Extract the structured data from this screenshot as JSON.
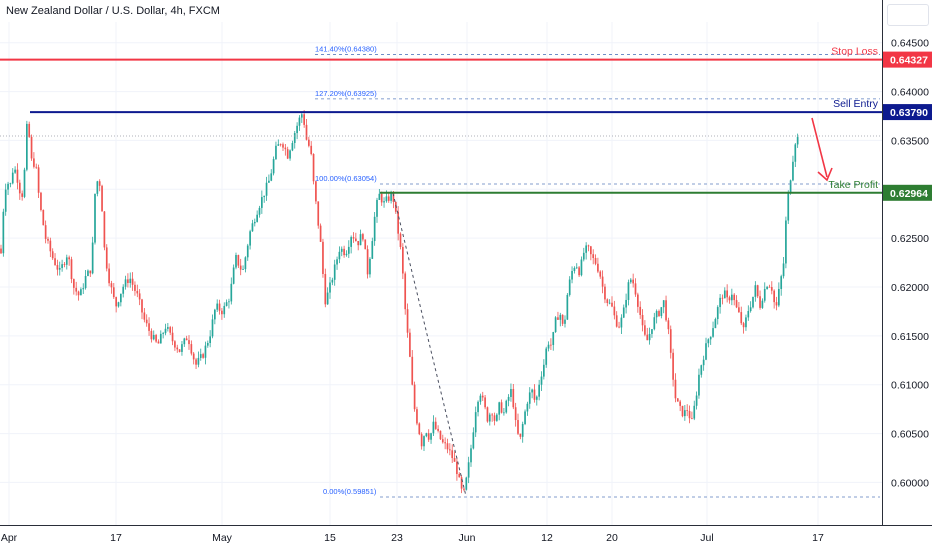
{
  "chart_data": {
    "type": "candlestick",
    "title": "New Zealand Dollar / U.S. Dollar, 4h, FXCM",
    "ylim": [
      0.5965,
      0.6475
    ],
    "x_ticks": [
      "Apr",
      "17",
      "May",
      "15",
      "23",
      "Jun",
      "12",
      "20",
      "Jul",
      "17"
    ],
    "y_ticks": [
      "0.64500",
      "0.64000",
      "0.63500",
      "0.63000",
      "0.62500",
      "0.62000",
      "0.61500",
      "0.61000",
      "0.60500",
      "0.60000"
    ],
    "price_path": [
      [
        0,
        0.6245
      ],
      [
        3,
        0.6228
      ],
      [
        6,
        0.6285
      ],
      [
        9,
        0.6312
      ],
      [
        12,
        0.63
      ],
      [
        16,
        0.6325
      ],
      [
        20,
        0.631
      ],
      [
        24,
        0.629
      ],
      [
        27,
        0.632
      ],
      [
        30,
        0.6378
      ],
      [
        33,
        0.633
      ],
      [
        38,
        0.6325
      ],
      [
        42,
        0.6285
      ],
      [
        48,
        0.625
      ],
      [
        55,
        0.623
      ],
      [
        62,
        0.6215
      ],
      [
        70,
        0.6235
      ],
      [
        76,
        0.62
      ],
      [
        82,
        0.619
      ],
      [
        88,
        0.621
      ],
      [
        94,
        0.622
      ],
      [
        98,
        0.631
      ],
      [
        103,
        0.6305
      ],
      [
        107,
        0.6235
      ],
      [
        112,
        0.6205
      ],
      [
        118,
        0.618
      ],
      [
        125,
        0.62
      ],
      [
        132,
        0.621
      ],
      [
        140,
        0.619
      ],
      [
        147,
        0.6165
      ],
      [
        154,
        0.615
      ],
      [
        160,
        0.614
      ],
      [
        168,
        0.616
      ],
      [
        175,
        0.6145
      ],
      [
        182,
        0.6135
      ],
      [
        190,
        0.615
      ],
      [
        198,
        0.612
      ],
      [
        205,
        0.613
      ],
      [
        212,
        0.615
      ],
      [
        218,
        0.618
      ],
      [
        225,
        0.6175
      ],
      [
        232,
        0.619
      ],
      [
        238,
        0.623
      ],
      [
        245,
        0.6215
      ],
      [
        252,
        0.6255
      ],
      [
        260,
        0.628
      ],
      [
        266,
        0.6295
      ],
      [
        272,
        0.631
      ],
      [
        278,
        0.634
      ],
      [
        284,
        0.635
      ],
      [
        290,
        0.6335
      ],
      [
        296,
        0.6355
      ],
      [
        301,
        0.637
      ],
      [
        305,
        0.6379
      ],
      [
        309,
        0.635
      ],
      [
        313,
        0.634
      ],
      [
        316,
        0.6305
      ],
      [
        320,
        0.627
      ],
      [
        324,
        0.6235
      ],
      [
        327,
        0.6185
      ],
      [
        331,
        0.6195
      ],
      [
        336,
        0.6215
      ],
      [
        342,
        0.624
      ],
      [
        348,
        0.6235
      ],
      [
        354,
        0.6255
      ],
      [
        360,
        0.6245
      ],
      [
        365,
        0.6255
      ],
      [
        370,
        0.6215
      ],
      [
        374,
        0.6245
      ],
      [
        378,
        0.628
      ],
      [
        382,
        0.6295
      ],
      [
        386,
        0.6285
      ],
      [
        390,
        0.629
      ],
      [
        395,
        0.6295
      ],
      [
        400,
        0.626
      ],
      [
        404,
        0.623
      ],
      [
        408,
        0.617
      ],
      [
        412,
        0.613
      ],
      [
        416,
        0.608
      ],
      [
        420,
        0.606
      ],
      [
        424,
        0.604
      ],
      [
        428,
        0.6055
      ],
      [
        432,
        0.6045
      ],
      [
        436,
        0.606
      ],
      [
        440,
        0.605
      ],
      [
        445,
        0.604
      ],
      [
        450,
        0.6035
      ],
      [
        455,
        0.6025
      ],
      [
        460,
        0.601
      ],
      [
        463,
        0.5993
      ],
      [
        466,
        0.5987
      ],
      [
        470,
        0.601
      ],
      [
        474,
        0.604
      ],
      [
        478,
        0.6075
      ],
      [
        482,
        0.6095
      ],
      [
        486,
        0.608
      ],
      [
        490,
        0.6065
      ],
      [
        494,
        0.6075
      ],
      [
        498,
        0.606
      ],
      [
        502,
        0.608
      ],
      [
        506,
        0.607
      ],
      [
        510,
        0.6085
      ],
      [
        514,
        0.6095
      ],
      [
        518,
        0.606
      ],
      [
        522,
        0.604
      ],
      [
        526,
        0.6065
      ],
      [
        530,
        0.6085
      ],
      [
        534,
        0.6095
      ],
      [
        538,
        0.608
      ],
      [
        542,
        0.6105
      ],
      [
        546,
        0.612
      ],
      [
        550,
        0.6145
      ],
      [
        554,
        0.614
      ],
      [
        558,
        0.6165
      ],
      [
        562,
        0.6175
      ],
      [
        566,
        0.6155
      ],
      [
        570,
        0.6195
      ],
      [
        574,
        0.6215
      ],
      [
        578,
        0.6225
      ],
      [
        582,
        0.6215
      ],
      [
        586,
        0.6235
      ],
      [
        590,
        0.624
      ],
      [
        594,
        0.623
      ],
      [
        598,
        0.6225
      ],
      [
        602,
        0.6215
      ],
      [
        606,
        0.6195
      ],
      [
        610,
        0.6185
      ],
      [
        614,
        0.618
      ],
      [
        618,
        0.6165
      ],
      [
        622,
        0.616
      ],
      [
        626,
        0.6175
      ],
      [
        630,
        0.62
      ],
      [
        634,
        0.621
      ],
      [
        638,
        0.6195
      ],
      [
        642,
        0.6175
      ],
      [
        646,
        0.615
      ],
      [
        650,
        0.6145
      ],
      [
        654,
        0.616
      ],
      [
        658,
        0.617
      ],
      [
        662,
        0.6175
      ],
      [
        666,
        0.6185
      ],
      [
        670,
        0.616
      ],
      [
        674,
        0.612
      ],
      [
        678,
        0.6085
      ],
      [
        682,
        0.6075
      ],
      [
        686,
        0.607
      ],
      [
        690,
        0.6075
      ],
      [
        694,
        0.606
      ],
      [
        698,
        0.6085
      ],
      [
        702,
        0.6115
      ],
      [
        706,
        0.613
      ],
      [
        710,
        0.6145
      ],
      [
        714,
        0.6155
      ],
      [
        718,
        0.617
      ],
      [
        722,
        0.6185
      ],
      [
        726,
        0.6195
      ],
      [
        730,
        0.6185
      ],
      [
        734,
        0.6195
      ],
      [
        738,
        0.618
      ],
      [
        742,
        0.617
      ],
      [
        746,
        0.6155
      ],
      [
        750,
        0.6175
      ],
      [
        754,
        0.6185
      ],
      [
        758,
        0.62
      ],
      [
        762,
        0.618
      ],
      [
        766,
        0.6195
      ],
      [
        770,
        0.6205
      ],
      [
        774,
        0.62
      ],
      [
        778,
        0.6175
      ],
      [
        782,
        0.62
      ],
      [
        786,
        0.6225
      ],
      [
        789,
        0.628
      ],
      [
        792,
        0.6305
      ],
      [
        795,
        0.633
      ],
      [
        798,
        0.6352
      ]
    ],
    "levels": [
      {
        "name": "Stop Loss",
        "price": 0.64327,
        "label": "0.64327",
        "color": "#f23645"
      },
      {
        "name": "Sell Entry",
        "price": 0.6379,
        "label": "0.63790",
        "color": "#0d1a8f"
      },
      {
        "name": "Take Profit",
        "price": 0.62964,
        "label": "0.62964",
        "color": "#2e7d32"
      }
    ],
    "fib_levels": [
      {
        "label": "141.40%(0.64380)",
        "price": 0.6438
      },
      {
        "label": "127.20%(0.63925)",
        "price": 0.63925
      },
      {
        "label": "100.00%(0.63054)",
        "price": 0.63054
      },
      {
        "label": "0.00%(0.59851)",
        "price": 0.59851
      }
    ],
    "last_price_line": 0.63545,
    "colors": {
      "up": "#26a69a",
      "down": "#ef5350",
      "grid": "#f0f3fa",
      "axis_text": "#131722"
    }
  }
}
